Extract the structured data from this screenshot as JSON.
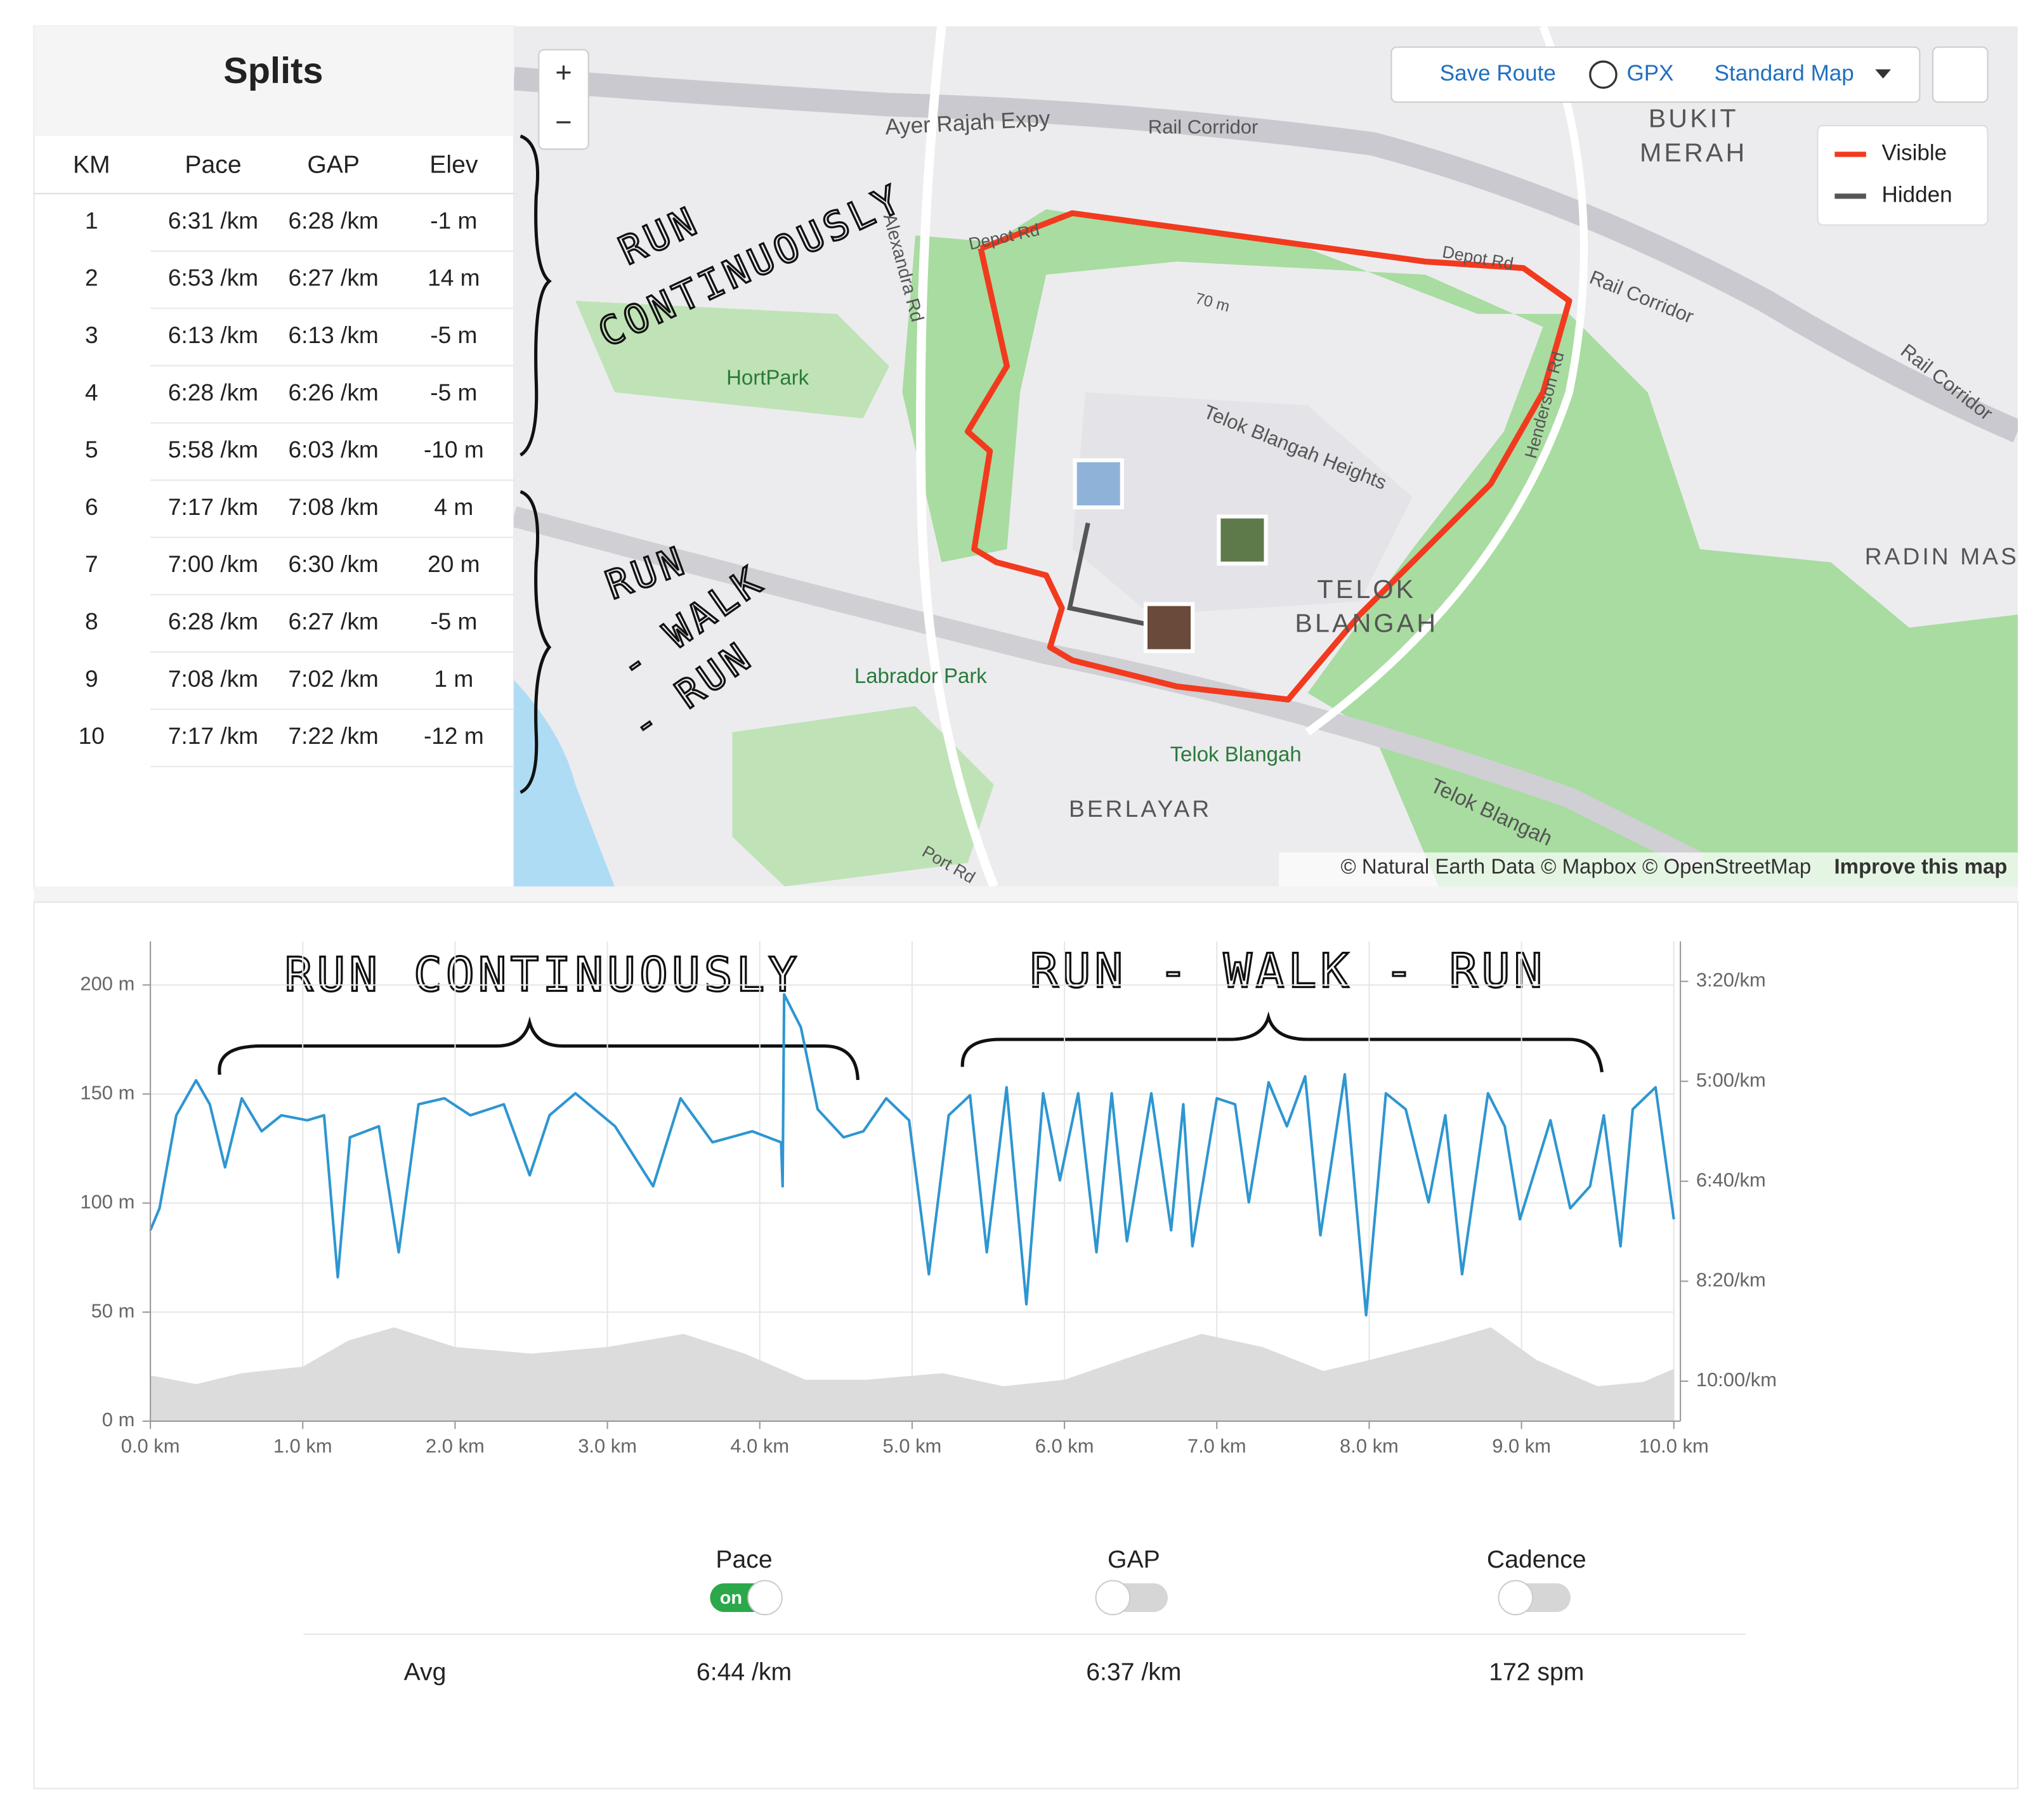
{
  "splits": {
    "title": "Splits",
    "columns": [
      "KM",
      "Pace",
      "GAP",
      "Elev"
    ],
    "rows": [
      [
        "1",
        "6:31 /km",
        "6:28 /km",
        "-1 m"
      ],
      [
        "2",
        "6:53 /km",
        "6:27 /km",
        "14 m"
      ],
      [
        "3",
        "6:13 /km",
        "6:13 /km",
        "-5 m"
      ],
      [
        "4",
        "6:28 /km",
        "6:26 /km",
        "-5 m"
      ],
      [
        "5",
        "5:58 /km",
        "6:03 /km",
        "-10 m"
      ],
      [
        "6",
        "7:17 /km",
        "7:08 /km",
        "4 m"
      ],
      [
        "7",
        "7:00 /km",
        "6:30 /km",
        "20 m"
      ],
      [
        "8",
        "6:28 /km",
        "6:27 /km",
        "-5 m"
      ],
      [
        "9",
        "7:08 /km",
        "7:02 /km",
        "1 m"
      ],
      [
        "10",
        "7:17 /km",
        "7:22 /km",
        "-12 m"
      ]
    ]
  },
  "map": {
    "controls": {
      "zoom_in": "+",
      "zoom_out": "−",
      "save_route": "Save Route",
      "gpx": "GPX",
      "map_style": "Standard Map"
    },
    "legend": [
      "Visible",
      "Hidden"
    ],
    "labels": [
      "Ayer Rajah Expy",
      "Rail Corridor",
      "BUKIT",
      "MERAH",
      "Depot Rd",
      "Depot Rd",
      "Alexandra Rd",
      "HortPark",
      "70 m",
      "Telok Blangah Heights",
      "Henderson Rd",
      "Rail Corridor",
      "Rail Corridor",
      "RADIN MAS",
      "TELOK",
      "BLANGAH",
      "Labrador Park",
      "Telok Blangah",
      "BERLAYAR",
      "Telok Blangah",
      "Port Rd"
    ],
    "attribution": "© Natural Earth Data © Mapbox © OpenStreetMap",
    "improve": "Improve this map"
  },
  "map_notes": [
    "RUN",
    "CONTINUOUSLY",
    "RUN",
    "- WALK",
    "- RUN"
  ],
  "chart_notes": [
    "RUN CONTINUOUSLY",
    "RUN - WALK - RUN"
  ],
  "chart_data": {
    "type": "line",
    "xlim": [
      0,
      10
    ],
    "xticks": [
      {
        "value": 0,
        "label": "0.0 km"
      },
      {
        "value": 1,
        "label": "1.0 km"
      },
      {
        "value": 2,
        "label": "2.0 km"
      },
      {
        "value": 3,
        "label": "3.0 km"
      },
      {
        "value": 4,
        "label": "4.0 km"
      },
      {
        "value": 5,
        "label": "5.0 km"
      },
      {
        "value": 6,
        "label": "6.0 km"
      },
      {
        "value": 7,
        "label": "7.0 km"
      },
      {
        "value": 8,
        "label": "8.0 km"
      },
      {
        "value": 9,
        "label": "9.0 km"
      },
      {
        "value": 10,
        "label": "10.0 km"
      }
    ],
    "ylim": [
      0,
      220
    ],
    "yticks": [
      {
        "value": 0,
        "label": "0 m"
      },
      {
        "value": 50,
        "label": "50 m"
      },
      {
        "value": 100,
        "label": "100 m"
      },
      {
        "value": 150,
        "label": "150 m"
      },
      {
        "value": 200,
        "label": "200 m"
      }
    ],
    "y2lim": [
      640,
      160
    ],
    "y2ticks": [
      {
        "value": 200,
        "label": "3:20/km"
      },
      {
        "value": 300,
        "label": "5:00/km"
      },
      {
        "value": 400,
        "label": "6:40/km"
      },
      {
        "value": 500,
        "label": "8:20/km"
      },
      {
        "value": 600,
        "label": "10:00/km"
      }
    ],
    "grid": true,
    "series": [
      {
        "kind": "line",
        "axis": "y2",
        "color": "#2e96d1",
        "x": [
          0,
          0.06,
          0.17,
          0.3,
          0.39,
          0.49,
          0.6,
          0.73,
          0.86,
          1.03,
          1.14,
          1.23,
          1.31,
          1.5,
          1.63,
          1.76,
          1.93,
          2.1,
          2.32,
          2.49,
          2.62,
          2.79,
          3.05,
          3.3,
          3.48,
          3.69,
          3.95,
          4.14,
          4.15,
          4.16,
          4.27,
          4.38,
          4.55,
          4.68,
          4.83,
          4.98,
          5.11,
          5.24,
          5.38,
          5.49,
          5.62,
          5.75,
          5.86,
          5.97,
          6.09,
          6.21,
          6.31,
          6.41,
          6.57,
          6.7,
          6.78,
          6.84,
          7.0,
          7.12,
          7.21,
          7.34,
          7.46,
          7.58,
          7.68,
          7.84,
          7.98,
          8.11,
          8.24,
          8.39,
          8.5,
          8.61,
          8.78,
          8.89,
          8.99,
          9.19,
          9.32,
          9.45,
          9.54,
          9.65,
          9.73,
          9.88,
          10.0
        ],
        "values": [
          449,
          427,
          334,
          299,
          323,
          386,
          317,
          350,
          334,
          339,
          334,
          496,
          356,
          345,
          471,
          323,
          317,
          334,
          323,
          394,
          334,
          312,
          345,
          405,
          317,
          361,
          350,
          361,
          405,
          213,
          246,
          328,
          356,
          350,
          317,
          339,
          493,
          334,
          314,
          471,
          306,
          523,
          312,
          399,
          312,
          471,
          312,
          460,
          312,
          449,
          323,
          465,
          317,
          323,
          421,
          301,
          345,
          295,
          454,
          293,
          534,
          312,
          328,
          421,
          334,
          493,
          312,
          345,
          438,
          339,
          427,
          405,
          334,
          465,
          328,
          306,
          438
        ]
      },
      {
        "kind": "area",
        "axis": "y",
        "color": "#dcdcdc",
        "x": [
          0,
          0.3,
          0.6,
          1.0,
          1.3,
          1.6,
          2.0,
          2.5,
          3.0,
          3.5,
          3.9,
          4.3,
          4.7,
          5.2,
          5.6,
          6.0,
          6.5,
          6.9,
          7.3,
          7.7,
          8.0,
          8.5,
          8.8,
          9.1,
          9.5,
          9.8,
          10.0
        ],
        "values": [
          21,
          17,
          22,
          25,
          37,
          43,
          34,
          31,
          34,
          40,
          31,
          19,
          19,
          22,
          16,
          19,
          31,
          40,
          34,
          23,
          28,
          37,
          43,
          28,
          16,
          18,
          24
        ]
      }
    ]
  },
  "toggles": [
    {
      "label": "Pace",
      "state": "on"
    },
    {
      "label": "GAP"
    },
    {
      "label": "Cadence"
    }
  ],
  "averages": {
    "label": "Avg",
    "values": [
      "6:44 /km",
      "6:37 /km",
      "172 spm"
    ]
  }
}
